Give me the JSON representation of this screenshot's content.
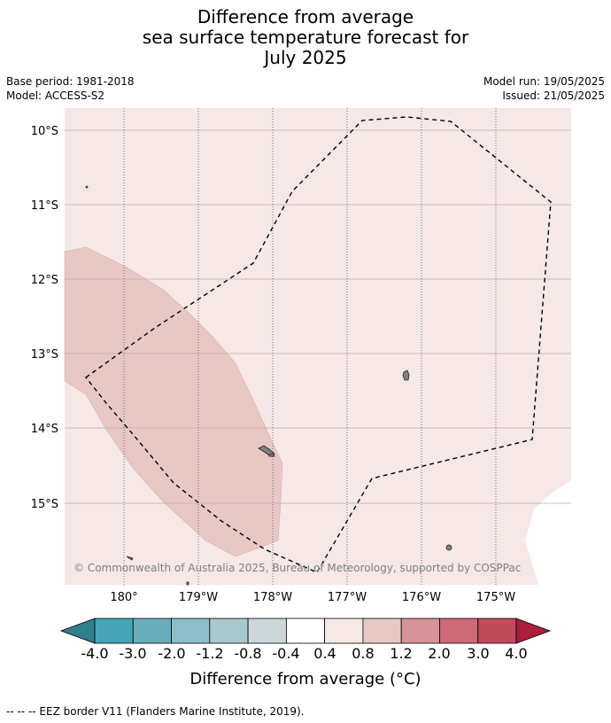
{
  "title": {
    "line1": "Difference from average",
    "line2": "sea surface temperature forecast for",
    "line3": "July 2025"
  },
  "meta": {
    "base_period": "Base period: 1981-2018",
    "model": "Model: ACCESS-S2",
    "model_run": "Model run: 19/05/2025",
    "issued": "Issued: 21/05/2025"
  },
  "map": {
    "lat_labels": [
      "10°S",
      "11°S",
      "12°S",
      "13°S",
      "14°S",
      "15°S"
    ],
    "lon_labels": [
      "180°",
      "179°W",
      "178°W",
      "177°W",
      "176°W",
      "175°W"
    ],
    "copyright": "© Commonwealth of Australia 2025, Bureau of Meteorology, supported by COSPPac",
    "colors": {
      "background_anomaly": "#f5e8e7",
      "warm_anomaly_patch": "#e8c8c4",
      "land": "#808080"
    }
  },
  "colorbar": {
    "title": "Difference from average (°C)",
    "tick_labels": [
      "-4.0",
      "-3.0",
      "-2.0",
      "-1.2",
      "-0.8",
      "-0.4",
      "0.4",
      "0.8",
      "1.2",
      "2.0",
      "3.0",
      "4.0"
    ],
    "colors": [
      "#2f7f8c",
      "#47a4b7",
      "#6aaebb",
      "#8dbfca",
      "#a8c8cd",
      "#cdd6d8",
      "#ffffff",
      "#f5e8e7",
      "#e8c8c4",
      "#d8939a",
      "#cc6a77",
      "#c14a5c",
      "#a8203c"
    ]
  },
  "footnote": "--  --  -- EEZ border V11 (Flanders Marine Institute, 2019)."
}
